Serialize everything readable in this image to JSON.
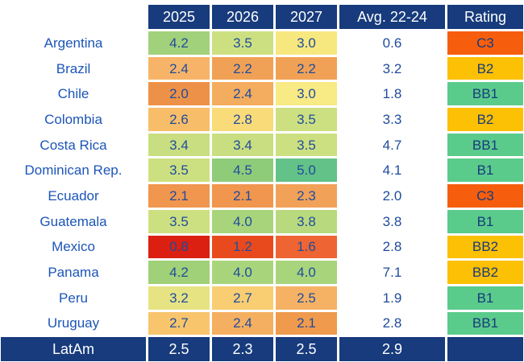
{
  "colors": {
    "header_bg": "#173B7C",
    "header_text": "#ffffff",
    "country_text": "#1C55B8",
    "cell_text": "#1F4C9C",
    "footer_bg": "#173B7C",
    "footer_text": "#ffffff",
    "rating_red": "#F65E0D",
    "rating_amber": "#FCC004",
    "rating_green": "#5BCB8C"
  },
  "chart_data": {
    "type": "table",
    "title": "",
    "columns": [
      "",
      "2025",
      "2026",
      "2027",
      "Avg. 22-24",
      "Rating"
    ],
    "rows": [
      [
        "Argentina",
        4.2,
        3.5,
        3.0,
        0.6,
        "C3"
      ],
      [
        "Brazil",
        2.4,
        2.2,
        2.2,
        3.2,
        "B2"
      ],
      [
        "Chile",
        2.0,
        2.4,
        3.0,
        1.8,
        "BB1"
      ],
      [
        "Colombia",
        2.6,
        2.8,
        3.5,
        3.3,
        "B2"
      ],
      [
        "Costa Rica",
        3.4,
        3.4,
        3.5,
        4.7,
        "BB1"
      ],
      [
        "Dominican Rep.",
        3.5,
        4.5,
        5.0,
        4.1,
        "B1"
      ],
      [
        "Ecuador",
        2.1,
        2.1,
        2.3,
        2.0,
        "C3"
      ],
      [
        "Guatemala",
        3.5,
        4.0,
        3.8,
        3.8,
        "B1"
      ],
      [
        "Mexico",
        0.8,
        1.2,
        1.6,
        2.8,
        "BB2"
      ],
      [
        "Panama",
        4.2,
        4.0,
        4.0,
        7.1,
        "BB2"
      ],
      [
        "Peru",
        3.2,
        2.7,
        2.5,
        1.9,
        "B1"
      ],
      [
        "Uruguay",
        2.7,
        2.4,
        2.1,
        2.8,
        "BB1"
      ],
      [
        "LatAm",
        2.5,
        2.3,
        2.5,
        2.9,
        ""
      ]
    ],
    "layout_hints": {
      "heatmap_on_year_columns": true,
      "heatmap_scale": "red(low) to yellow to green(high)",
      "footer_row": "LatAm",
      "avg_column_background": "white"
    }
  },
  "table": {
    "headers": [
      "2025",
      "2026",
      "2027",
      "Avg. 22-24",
      "Rating"
    ],
    "rows": [
      {
        "country": "Argentina",
        "values": [
          "4.2",
          "3.5",
          "3.0"
        ],
        "cell_colors": [
          "#A2D17C",
          "#CDE081",
          "#F7E77F"
        ],
        "avg": "0.6",
        "rating": "C3",
        "rating_color": "#F65E0D"
      },
      {
        "country": "Brazil",
        "values": [
          "2.4",
          "2.2",
          "2.2"
        ],
        "cell_colors": [
          "#F7B469",
          "#F1A156",
          "#F1A156"
        ],
        "avg": "3.2",
        "rating": "B2",
        "rating_color": "#FCC004"
      },
      {
        "country": "Chile",
        "values": [
          "2.0",
          "2.4",
          "3.0"
        ],
        "cell_colors": [
          "#EE9148",
          "#F4AC5E",
          "#F8EA84"
        ],
        "avg": "1.8",
        "rating": "BB1",
        "rating_color": "#5BCB8C"
      },
      {
        "country": "Colombia",
        "values": [
          "2.6",
          "2.8",
          "3.5"
        ],
        "cell_colors": [
          "#F8BD68",
          "#FADB79",
          "#CDE081"
        ],
        "avg": "3.3",
        "rating": "B2",
        "rating_color": "#FCC004"
      },
      {
        "country": "Costa Rica",
        "values": [
          "3.4",
          "3.4",
          "3.5"
        ],
        "cell_colors": [
          "#C9DE80",
          "#C9DE80",
          "#CDE081"
        ],
        "avg": "4.7",
        "rating": "BB1",
        "rating_color": "#5BCB8C"
      },
      {
        "country": "Dominican Rep.",
        "values": [
          "3.5",
          "4.5",
          "5.0"
        ],
        "cell_colors": [
          "#CDE081",
          "#8FCC7A",
          "#63C287"
        ],
        "avg": "4.1",
        "rating": "B1",
        "rating_color": "#5BCB8C"
      },
      {
        "country": "Ecuador",
        "values": [
          "2.1",
          "2.1",
          "2.3"
        ],
        "cell_colors": [
          "#F0964F",
          "#F0964F",
          "#F2A159"
        ],
        "avg": "2.0",
        "rating": "C3",
        "rating_color": "#F65E0D"
      },
      {
        "country": "Guatemala",
        "values": [
          "3.5",
          "4.0",
          "3.8"
        ],
        "cell_colors": [
          "#CDE081",
          "#A8D57C",
          "#B8D97E"
        ],
        "avg": "3.8",
        "rating": "B1",
        "rating_color": "#5BCB8C"
      },
      {
        "country": "Mexico",
        "values": [
          "0.8",
          "1.2",
          "1.6"
        ],
        "cell_colors": [
          "#DB1F10",
          "#E84A1E",
          "#EE6433"
        ],
        "avg": "2.8",
        "rating": "BB2",
        "rating_color": "#FCC004"
      },
      {
        "country": "Panama",
        "values": [
          "4.2",
          "4.0",
          "4.0"
        ],
        "cell_colors": [
          "#A0D078",
          "#A8D57C",
          "#A8D57C"
        ],
        "avg": "7.1",
        "rating": "BB2",
        "rating_color": "#FCC004"
      },
      {
        "country": "Peru",
        "values": [
          "3.2",
          "2.7",
          "2.5"
        ],
        "cell_colors": [
          "#E6E383",
          "#F9CD72",
          "#F6B264"
        ],
        "avg": "1.9",
        "rating": "B1",
        "rating_color": "#5BCB8C"
      },
      {
        "country": "Uruguay",
        "values": [
          "2.7",
          "2.4",
          "2.1"
        ],
        "cell_colors": [
          "#F8C56C",
          "#F5AF60",
          "#EF9A4C"
        ],
        "avg": "2.8",
        "rating": "BB1",
        "rating_color": "#5BCB8C"
      }
    ],
    "footer": {
      "label": "LatAm",
      "values": [
        "2.5",
        "2.3",
        "2.5"
      ],
      "avg": "2.9",
      "rating": ""
    }
  }
}
